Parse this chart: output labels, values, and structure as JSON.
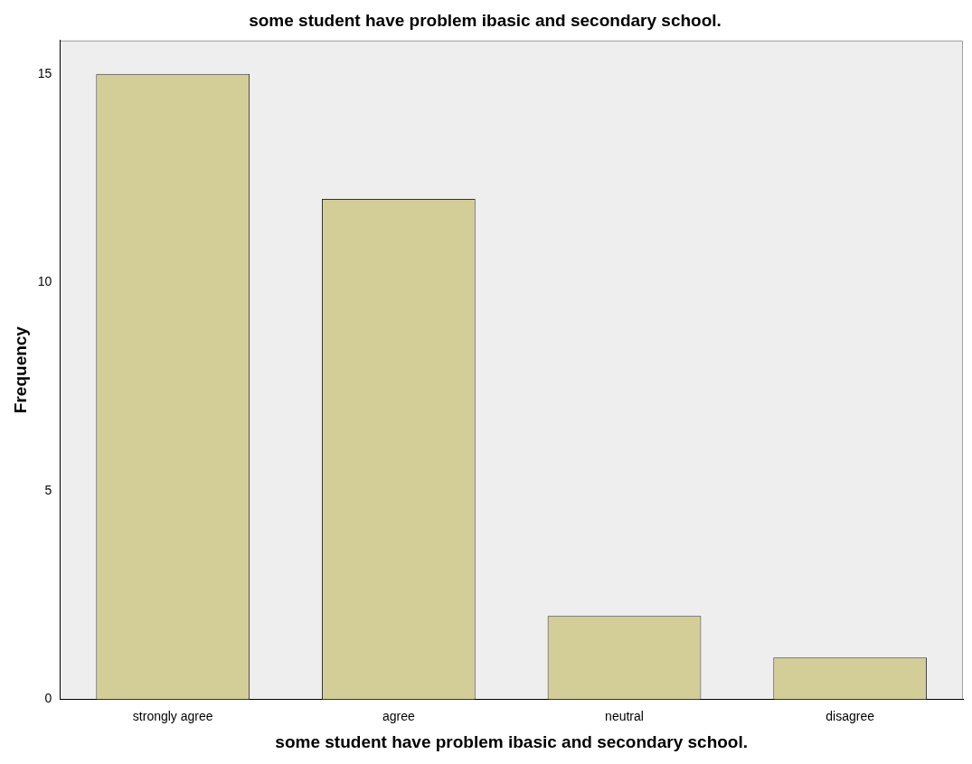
{
  "chart_data": {
    "type": "bar",
    "title": "some student have problem ibasic and secondary school.",
    "xlabel": "some student have problem ibasic and secondary school.",
    "ylabel": "Frequency",
    "categories": [
      "strongly agree",
      "agree",
      "neutral",
      "disagree"
    ],
    "values": [
      15,
      12,
      2,
      1
    ],
    "color": "#d3ce97",
    "ylim": [
      0,
      15.8
    ],
    "yticks": [
      0,
      5,
      10,
      15
    ],
    "grid": false,
    "legend": false
  }
}
